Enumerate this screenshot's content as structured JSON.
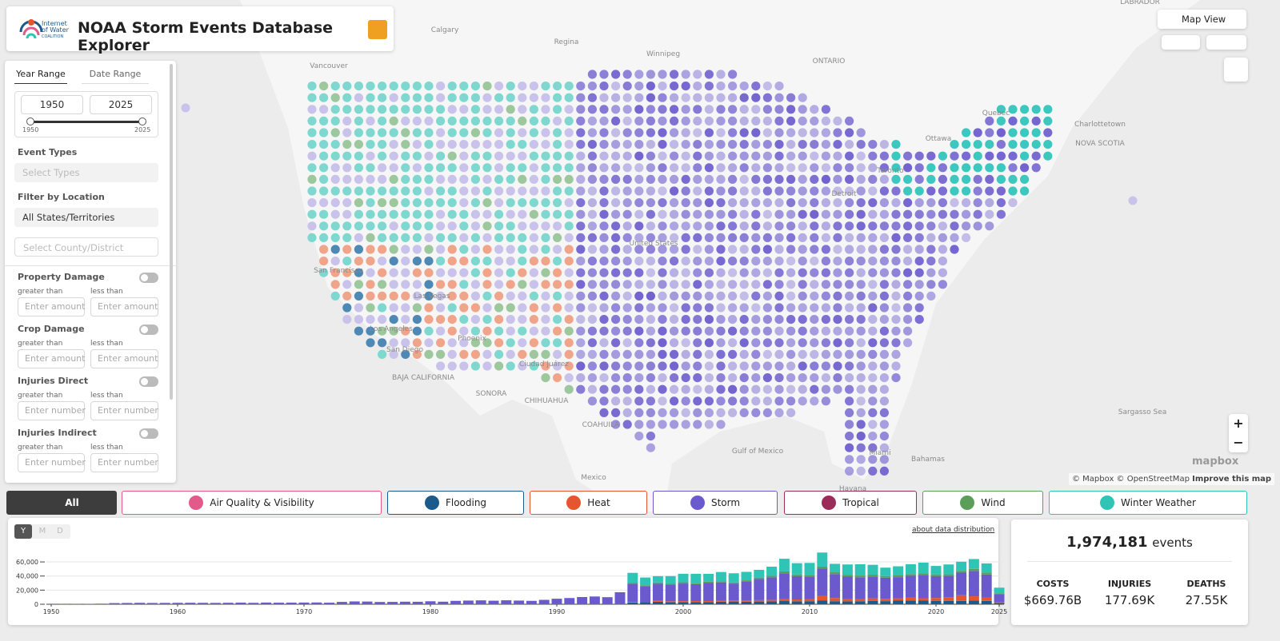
{
  "header": {
    "title": "NOAA Storm Events Database Explorer",
    "logo": [
      "Internet",
      "of Water",
      "COALITION"
    ]
  },
  "sidebar": {
    "tabs": [
      "Year Range",
      "Date Range"
    ],
    "year_start": "1950",
    "year_end": "2025",
    "slider_min": "1950",
    "slider_max": "2025",
    "event_types": "Event Types",
    "event_types_placeholder": "Select Types",
    "location": "Filter by Location",
    "state_select": "All States/Territories",
    "county_select": "Select County/District",
    "filters": [
      {
        "label": "Property Damage",
        "greater": "greater than",
        "less": "less than",
        "min": "Enter amount",
        "max": "Enter amount"
      },
      {
        "label": "Crop Damage",
        "greater": "greater than",
        "less": "less than",
        "min": "Enter amount",
        "max": "Enter amount"
      },
      {
        "label": "Injuries Direct",
        "greater": "greater than",
        "less": "less than",
        "min": "Enter number",
        "max": "Enter number"
      },
      {
        "label": "Injuries Indirect",
        "greater": "greater than",
        "less": "less than",
        "min": "Enter number",
        "max": "Enter number"
      }
    ]
  },
  "map": {
    "view": "Map View",
    "labels": [
      "Calgary",
      "Regina",
      "Winnipeg",
      "ONTARIO",
      "LABRADOR",
      "Vancouver",
      "Toronto",
      "Ottawa",
      "Quebec",
      "Charlottetown",
      "Detroit",
      "United States",
      "San Francisco",
      "Las Vegas",
      "Los Angeles",
      "San Diego",
      "Phoenix",
      "Ciudad Juárez",
      "SONORA",
      "CHIHUAHUA",
      "Mexico",
      "Gulf of Mexico",
      "Sargasso Sea",
      "Bahamas",
      "Havana",
      "Miami",
      "BAJA CALIFORNIA",
      "NOVA SCOTIA",
      "COAHUILA"
    ],
    "attribution": "© Mapbox © OpenStreetMap",
    "improve": "Improve this map",
    "logo": "mapbox"
  },
  "categories": [
    {
      "label": "All",
      "color": "#3d3d3d"
    },
    {
      "label": "Air Quality & Visibility",
      "color": "#e05a8a"
    },
    {
      "label": "Flooding",
      "color": "#1b5a8c"
    },
    {
      "label": "Heat",
      "color": "#e4572e"
    },
    {
      "label": "Storm",
      "color": "#6a5acd"
    },
    {
      "label": "Tropical",
      "color": "#9b2c5a"
    },
    {
      "label": "Wind",
      "color": "#5a9e5a"
    },
    {
      "label": "Winter Weather",
      "color": "#2ec4b6"
    }
  ],
  "histogram_controls": {
    "resolution": [
      "Y",
      "M",
      "D"
    ],
    "link": "about data distribution"
  },
  "stats": {
    "events": "1,974,181",
    "events_label": "events",
    "items": [
      {
        "label": "COSTS",
        "value": "$669.76B"
      },
      {
        "label": "INJURIES",
        "value": "177.69K"
      },
      {
        "label": "DEATHS",
        "value": "27.55K"
      }
    ]
  },
  "chart_data": {
    "type": "bar",
    "stacked": true,
    "x": [
      1950,
      1951,
      1952,
      1953,
      1954,
      1955,
      1956,
      1957,
      1958,
      1959,
      1960,
      1961,
      1962,
      1963,
      1964,
      1965,
      1966,
      1967,
      1968,
      1969,
      1970,
      1971,
      1972,
      1973,
      1974,
      1975,
      1976,
      1977,
      1978,
      1979,
      1980,
      1981,
      1982,
      1983,
      1984,
      1985,
      1986,
      1987,
      1988,
      1989,
      1990,
      1991,
      1992,
      1993,
      1994,
      1995,
      1996,
      1997,
      1998,
      1999,
      2000,
      2001,
      2002,
      2003,
      2004,
      2005,
      2006,
      2007,
      2008,
      2009,
      2010,
      2011,
      2012,
      2013,
      2014,
      2015,
      2016,
      2017,
      2018,
      2019,
      2020,
      2021,
      2022,
      2023,
      2024,
      2025
    ],
    "series": [
      {
        "name": "Flooding",
        "color": "#1b5a8c",
        "values": [
          0,
          0,
          0,
          0,
          0,
          0,
          0,
          0,
          0,
          0,
          0,
          0,
          0,
          0,
          0,
          0,
          0,
          0,
          0,
          0,
          0,
          0,
          0,
          0,
          0,
          0,
          0,
          0,
          0,
          0,
          0,
          0,
          0,
          0,
          0,
          0,
          0,
          0,
          0,
          0,
          0,
          0,
          0,
          0,
          0,
          0,
          2500,
          2800,
          3500,
          3000,
          3000,
          3200,
          3200,
          3600,
          3800,
          3600,
          3800,
          3900,
          4500,
          4200,
          4300,
          5500,
          4300,
          4100,
          4300,
          4900,
          4400,
          5100,
          5400,
          5100,
          4900,
          4600,
          4800,
          5300,
          4700,
          1800
        ]
      },
      {
        "name": "Heat",
        "color": "#e4572e",
        "values": [
          0,
          0,
          0,
          0,
          0,
          0,
          0,
          0,
          0,
          0,
          0,
          0,
          0,
          0,
          0,
          0,
          0,
          0,
          0,
          0,
          0,
          0,
          0,
          0,
          0,
          0,
          0,
          0,
          0,
          0,
          0,
          0,
          0,
          0,
          0,
          0,
          0,
          0,
          0,
          0,
          0,
          0,
          0,
          0,
          0,
          0,
          500,
          600,
          1500,
          1200,
          1400,
          1300,
          1300,
          1400,
          1500,
          1600,
          2000,
          2200,
          2500,
          2600,
          3000,
          6000,
          4500,
          3000,
          3000,
          3500,
          3200,
          3300,
          3800,
          3400,
          4000,
          5500,
          8000,
          6000,
          4500,
          1500
        ]
      },
      {
        "name": "Storm",
        "color": "#6a5acd",
        "values": [
          200,
          300,
          400,
          600,
          800,
          1600,
          1800,
          2000,
          1800,
          1900,
          2000,
          2100,
          2000,
          1900,
          2100,
          2300,
          2000,
          2400,
          2200,
          2300,
          2400,
          2500,
          2200,
          3300,
          4000,
          3800,
          3200,
          3300,
          3600,
          3500,
          4200,
          3600,
          4800,
          5200,
          5500,
          5000,
          5600,
          5200,
          4800,
          6200,
          7800,
          8800,
          10200,
          11000,
          10000,
          17000,
          26000,
          22000,
          24000,
          23000,
          25000,
          24000,
          26000,
          26000,
          24000,
          27000,
          30000,
          32000,
          37000,
          33000,
          32000,
          39000,
          34000,
          32000,
          31000,
          31000,
          30000,
          30000,
          31000,
          33000,
          31000,
          30000,
          32000,
          36000,
          33000,
          11000
        ]
      },
      {
        "name": "Wind",
        "color": "#5a9e5a",
        "values": [
          0,
          0,
          0,
          0,
          0,
          0,
          0,
          0,
          0,
          0,
          0,
          0,
          0,
          0,
          0,
          0,
          0,
          0,
          0,
          0,
          0,
          0,
          0,
          0,
          0,
          0,
          0,
          0,
          0,
          0,
          0,
          0,
          0,
          0,
          0,
          0,
          0,
          0,
          0,
          0,
          0,
          0,
          0,
          0,
          0,
          0,
          1500,
          1500,
          1800,
          1700,
          1800,
          1700,
          1600,
          1700,
          1600,
          1700,
          2000,
          2200,
          2500,
          2400,
          2300,
          2800,
          2500,
          2300,
          2400,
          2500,
          2300,
          2400,
          2600,
          2500,
          2400,
          2300,
          2500,
          2800,
          2700,
          1200
        ]
      },
      {
        "name": "Winter Weather",
        "color": "#2ec4b6",
        "values": [
          0,
          0,
          0,
          0,
          0,
          0,
          0,
          0,
          0,
          0,
          0,
          0,
          0,
          0,
          0,
          0,
          0,
          0,
          0,
          0,
          0,
          0,
          0,
          0,
          0,
          0,
          0,
          0,
          0,
          0,
          0,
          0,
          0,
          0,
          0,
          0,
          0,
          0,
          0,
          0,
          0,
          0,
          0,
          0,
          0,
          0,
          14000,
          11000,
          9000,
          11000,
          12000,
          13000,
          11000,
          13000,
          13000,
          12000,
          11000,
          13000,
          18000,
          16000,
          17000,
          20000,
          12000,
          15000,
          16000,
          14000,
          12000,
          13000,
          14000,
          15000,
          12000,
          14000,
          13000,
          14000,
          13000,
          8000
        ]
      }
    ],
    "xlim": [
      1949.1,
      2025.9
    ],
    "ylim": [
      0,
      85000
    ],
    "xticks": [
      1950,
      1960,
      1970,
      1980,
      1990,
      2000,
      2010,
      2020,
      2025
    ],
    "yticks": [
      0,
      {
        "value": 20000,
        "label": "20,000"
      },
      {
        "value": 40000,
        "label": "40,000"
      },
      {
        "value": 60000,
        "label": "60,000"
      }
    ],
    "grid": true
  }
}
